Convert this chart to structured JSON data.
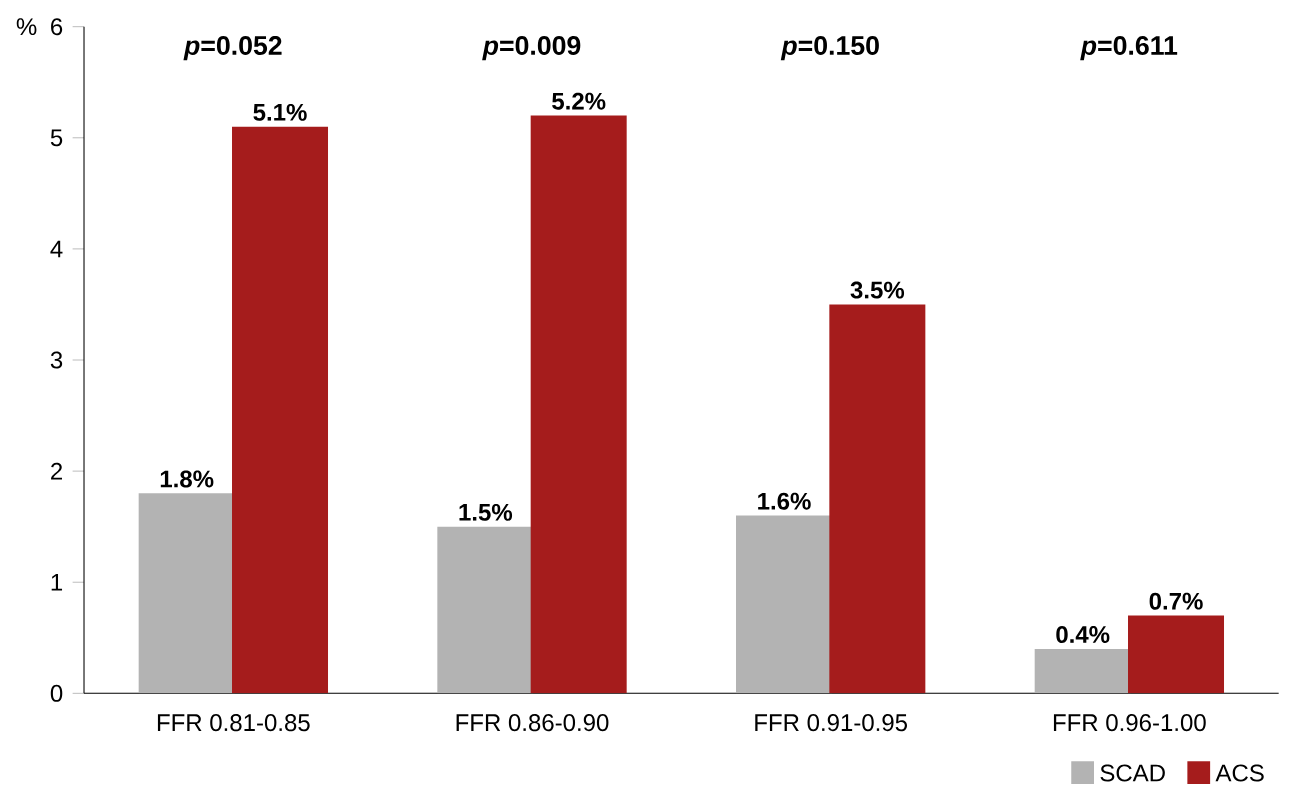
{
  "chart_data": {
    "type": "bar",
    "ylabel": "%",
    "categories": [
      "FFR 0.81-0.85",
      "FFR 0.86-0.90",
      "FFR 0.91-0.95",
      "FFR 0.96-1.00"
    ],
    "series": [
      {
        "name": "SCAD",
        "color": "#b3b3b3",
        "values": [
          1.8,
          1.5,
          1.6,
          0.4
        ],
        "value_labels": [
          "1.8%",
          "1.5%",
          "1.6%",
          "0.4%"
        ]
      },
      {
        "name": "ACS",
        "color": "#a51c1c",
        "values": [
          5.1,
          5.2,
          3.5,
          0.7
        ],
        "value_labels": [
          "5.1%",
          "5.2%",
          "3.5%",
          "0.7%"
        ]
      }
    ],
    "annotations": [
      "*p*=0.052",
      "*p*=0.009",
      "*p*=0.150",
      "*p*=0.611"
    ],
    "ylim": [
      0,
      6
    ],
    "yticks": [
      0,
      1,
      2,
      3,
      4,
      5,
      6
    ],
    "legend": "bottom right"
  }
}
